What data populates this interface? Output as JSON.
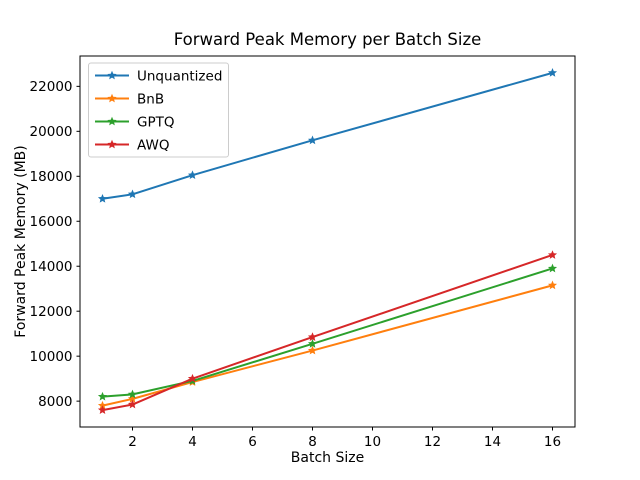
{
  "figure": {
    "background": "#ffffff",
    "axes_color": "#000000",
    "text_color": "#000000"
  },
  "chart_data": {
    "type": "line",
    "title": "Forward Peak Memory per Batch Size",
    "xlabel": "Batch Size",
    "ylabel": "Forward Peak Memory (MB)",
    "x": [
      1,
      2,
      4,
      8,
      16
    ],
    "series": [
      {
        "name": "Unquantized",
        "color": "#1f77b4",
        "values": [
          17000,
          17200,
          18050,
          19600,
          22600
        ]
      },
      {
        "name": "BnB",
        "color": "#ff7f0e",
        "values": [
          7800,
          8100,
          8850,
          10250,
          13150
        ]
      },
      {
        "name": "GPTQ",
        "color": "#2ca02c",
        "values": [
          8200,
          8300,
          8900,
          10550,
          13900
        ]
      },
      {
        "name": "AWQ",
        "color": "#d62728",
        "values": [
          7600,
          7850,
          9000,
          10850,
          14500
        ]
      }
    ],
    "marker": "star",
    "line_width": 2,
    "x_ticks": [
      2,
      4,
      6,
      8,
      10,
      12,
      14,
      16
    ],
    "y_ticks": [
      8000,
      10000,
      12000,
      14000,
      16000,
      18000,
      20000,
      22000
    ],
    "xlim": [
      0.25,
      16.75
    ],
    "ylim": [
      6850,
      23350
    ],
    "grid": false,
    "legend": {
      "position": "upper left",
      "entries": [
        "Unquantized",
        "BnB",
        "GPTQ",
        "AWQ"
      ]
    }
  }
}
